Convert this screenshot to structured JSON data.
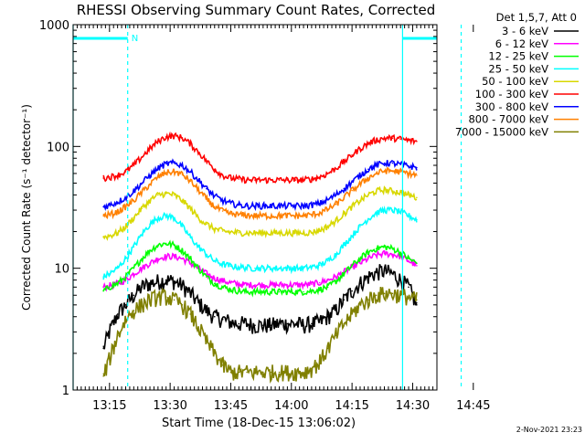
{
  "chart_data": {
    "type": "line",
    "title": "RHESSI Observing Summary Count Rates, Corrected",
    "xlabel": "Start Time (18-Dec-15 13:06:02)",
    "ylabel": "Corrected Count Rate (s⁻¹ detector⁻¹)",
    "y_scale": "log",
    "ylim": [
      1,
      1000
    ],
    "xlim_minutes_after_13_00": [
      6,
      96
    ],
    "x_ticks": [
      {
        "label": "13:15",
        "minute": 15
      },
      {
        "label": "13:30",
        "minute": 30
      },
      {
        "label": "13:45",
        "minute": 45
      },
      {
        "label": "14:00",
        "minute": 60
      },
      {
        "label": "14:15",
        "minute": 75
      },
      {
        "label": "14:30",
        "minute": 90
      },
      {
        "label": "14:45",
        "minute": 105
      }
    ],
    "y_ticks": [
      {
        "label": "1",
        "value": 1
      },
      {
        "label": "10",
        "value": 10
      },
      {
        "label": "100",
        "value": 100
      },
      {
        "label": "1000",
        "value": 1000
      }
    ],
    "legend_header": "Det 1,5,7, Att 0",
    "legend_position": "right",
    "grid": false,
    "annotations": {
      "flag_label": "N",
      "flag_color": "#00ffff",
      "flag_intervals_minutes": [
        [
          6,
          19.5
        ],
        [
          87.5,
          102
        ]
      ],
      "solid_lines_minutes": [
        6,
        87.5
      ],
      "dashed_lines_minutes": [
        19.5,
        102
      ]
    },
    "x_minutes": [
      13.5,
      15,
      17,
      19,
      21,
      23,
      25,
      27,
      29,
      31,
      33,
      35,
      37,
      39,
      41,
      43,
      45,
      47,
      49,
      51,
      53,
      55,
      57,
      59,
      61,
      63,
      65,
      67,
      69,
      71,
      73,
      75,
      77,
      79,
      81,
      83,
      85,
      87,
      89,
      91
    ],
    "series": [
      {
        "name": "3 - 6 keV",
        "color": "#000000",
        "values": [
          2.2,
          3.0,
          4.2,
          5.0,
          6.0,
          7.0,
          7.5,
          7.8,
          8.0,
          7.8,
          7.2,
          6.2,
          5.2,
          4.5,
          4.0,
          3.8,
          3.6,
          3.5,
          3.5,
          3.4,
          3.4,
          3.4,
          3.5,
          3.5,
          3.5,
          3.4,
          3.5,
          3.6,
          4.0,
          4.5,
          5.5,
          6.5,
          7.5,
          8.5,
          9.2,
          9.5,
          9.0,
          8.0,
          7.0,
          5.0
        ]
      },
      {
        "name": "6 - 12 keV",
        "color": "#ff00ff",
        "values": [
          7.0,
          7.2,
          7.5,
          8.0,
          9.0,
          10.0,
          11.0,
          12.0,
          12.5,
          12.5,
          12.0,
          11.0,
          10.0,
          9.0,
          8.3,
          7.9,
          7.6,
          7.4,
          7.3,
          7.3,
          7.3,
          7.3,
          7.3,
          7.3,
          7.3,
          7.3,
          7.4,
          7.6,
          8.0,
          8.5,
          9.3,
          10.2,
          11.0,
          12.0,
          12.8,
          13.2,
          13.0,
          12.5,
          11.5,
          10.5
        ]
      },
      {
        "name": "12 - 25 keV",
        "color": "#00ff00",
        "values": [
          6.5,
          7.0,
          7.5,
          8.5,
          10.0,
          12.0,
          14.0,
          15.5,
          16.0,
          15.5,
          14.0,
          12.0,
          10.0,
          8.5,
          7.5,
          7.0,
          6.7,
          6.5,
          6.4,
          6.4,
          6.4,
          6.4,
          6.4,
          6.4,
          6.4,
          6.4,
          6.5,
          6.7,
          7.0,
          7.8,
          9.0,
          10.5,
          12.0,
          13.5,
          14.5,
          15.0,
          14.5,
          13.5,
          12.0,
          11.0
        ]
      },
      {
        "name": "25 - 50 keV",
        "color": "#00ffff",
        "values": [
          8.5,
          9.0,
          10.0,
          12.0,
          15.0,
          19.0,
          23.0,
          26.0,
          27.0,
          26.0,
          22.0,
          18.0,
          15.0,
          13.0,
          11.5,
          10.8,
          10.4,
          10.2,
          10.1,
          10.0,
          10.0,
          10.0,
          10.0,
          10.0,
          10.0,
          10.0,
          10.2,
          10.6,
          11.5,
          13.0,
          15.5,
          18.5,
          22.0,
          25.5,
          28.5,
          30.0,
          30.0,
          29.0,
          27.0,
          25.0
        ]
      },
      {
        "name": "50 - 100 keV",
        "color": "#d8d800",
        "values": [
          18.0,
          18.5,
          19.5,
          22.0,
          26.0,
          31.0,
          36.0,
          40.0,
          41.0,
          40.0,
          36.0,
          31.0,
          26.0,
          23.0,
          21.0,
          20.2,
          19.8,
          19.6,
          19.5,
          19.5,
          19.5,
          19.5,
          19.5,
          19.5,
          19.5,
          19.5,
          19.7,
          20.5,
          22.0,
          24.5,
          28.0,
          32.0,
          36.0,
          40.0,
          43.0,
          44.0,
          43.0,
          42.0,
          40.0,
          38.0
        ]
      },
      {
        "name": "100 - 300 keV",
        "color": "#ff0000",
        "values": [
          55.0,
          56.0,
          58.0,
          62.0,
          70.0,
          82.0,
          96.0,
          110.0,
          120.0,
          122.0,
          118.0,
          105.0,
          90.0,
          76.0,
          65.0,
          58.0,
          55.0,
          54.0,
          53.0,
          53.0,
          53.0,
          53.0,
          53.0,
          53.0,
          53.0,
          53.0,
          54.0,
          56.0,
          60.0,
          66.0,
          75.0,
          85.0,
          96.0,
          106.0,
          113.0,
          117.0,
          117.0,
          115.0,
          112.0,
          110.0
        ]
      },
      {
        "name": "300 - 800 keV",
        "color": "#0000ff",
        "values": [
          32.0,
          33.0,
          35.0,
          38.0,
          43.0,
          50.0,
          58.0,
          66.0,
          72.0,
          73.0,
          70.0,
          62.0,
          53.0,
          45.0,
          39.0,
          36.0,
          34.0,
          33.0,
          32.5,
          32.5,
          32.5,
          32.5,
          32.5,
          32.5,
          32.5,
          32.5,
          33.0,
          34.0,
          36.5,
          40.0,
          45.0,
          51.0,
          58.0,
          65.0,
          70.0,
          73.0,
          73.0,
          71.0,
          69.0,
          67.0
        ]
      },
      {
        "name": "800 - 7000 keV",
        "color": "#ff8000",
        "values": [
          27.0,
          27.5,
          29.0,
          32.0,
          36.0,
          42.0,
          49.0,
          56.0,
          61.0,
          62.0,
          59.0,
          52.0,
          44.0,
          37.0,
          32.0,
          29.5,
          28.0,
          27.5,
          27.2,
          27.0,
          27.0,
          27.0,
          27.0,
          27.0,
          27.0,
          27.0,
          27.5,
          28.5,
          30.5,
          33.5,
          38.0,
          43.5,
          49.0,
          55.0,
          60.0,
          63.0,
          63.0,
          62.0,
          60.0,
          58.0
        ]
      },
      {
        "name": "7000 - 15000 keV",
        "color": "#808000",
        "values": [
          1.3,
          1.8,
          2.8,
          3.8,
          4.5,
          5.0,
          5.5,
          5.8,
          5.8,
          5.5,
          5.0,
          4.2,
          3.3,
          2.5,
          2.0,
          1.6,
          1.4,
          1.4,
          1.4,
          1.4,
          1.4,
          1.4,
          1.4,
          1.4,
          1.4,
          1.4,
          1.5,
          1.7,
          2.2,
          2.8,
          3.5,
          4.2,
          5.0,
          5.5,
          6.0,
          6.2,
          6.2,
          6.0,
          5.8,
          5.5
        ]
      }
    ]
  },
  "footer": {
    "timestamp": "2-Nov-2021 23:23"
  }
}
